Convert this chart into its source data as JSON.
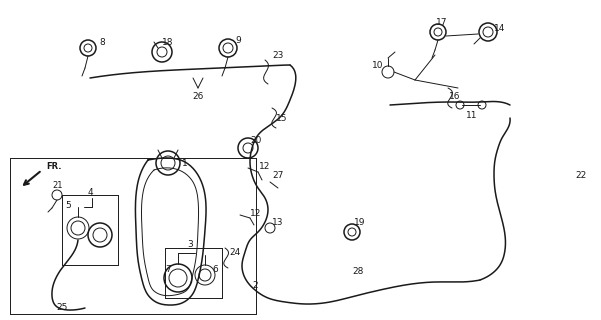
{
  "bg_color": "#ffffff",
  "line_color": "#1a1a1a",
  "fig_width": 6.01,
  "fig_height": 3.2,
  "dpi": 100
}
